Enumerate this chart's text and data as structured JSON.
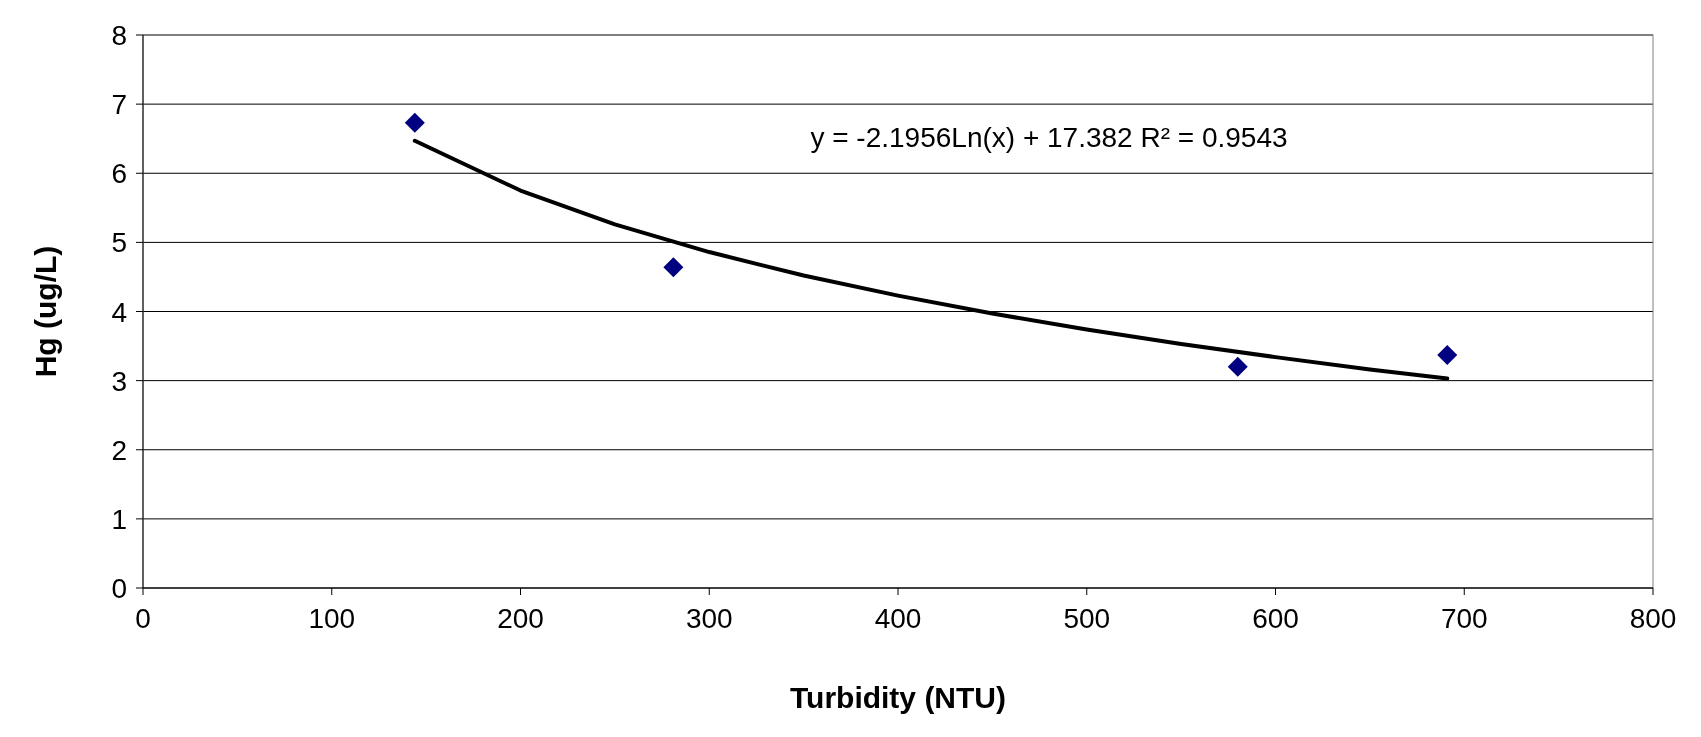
{
  "chart_data": {
    "type": "scatter",
    "xlabel": "Turbidity (NTU)",
    "ylabel": "Hg (ug/L)",
    "xlim": [
      0,
      800
    ],
    "xticks": [
      0,
      100,
      200,
      300,
      400,
      500,
      600,
      700,
      800
    ],
    "ylim": [
      0,
      8
    ],
    "yticks": [
      0,
      1,
      2,
      3,
      4,
      5,
      6,
      7,
      8
    ],
    "grid": "y",
    "annotations": [
      "y = -2.1956Ln(x) + 17.382  R² = 0.9543"
    ],
    "series": [
      {
        "color": "#000080",
        "marker": "diamond",
        "x": [
          144,
          281,
          580,
          691
        ],
        "values": [
          6.73,
          4.64,
          3.2,
          3.37
        ]
      },
      {
        "type": "line",
        "color": "#000000",
        "marker": "none",
        "line_style": "solid",
        "x": [
          144,
          200,
          250,
          300,
          350,
          400,
          450,
          500,
          550,
          600,
          650,
          691
        ],
        "values": [
          6.47,
          5.75,
          5.26,
          4.86,
          4.52,
          4.23,
          3.97,
          3.74,
          3.53,
          3.34,
          3.16,
          3.03
        ]
      }
    ]
  }
}
